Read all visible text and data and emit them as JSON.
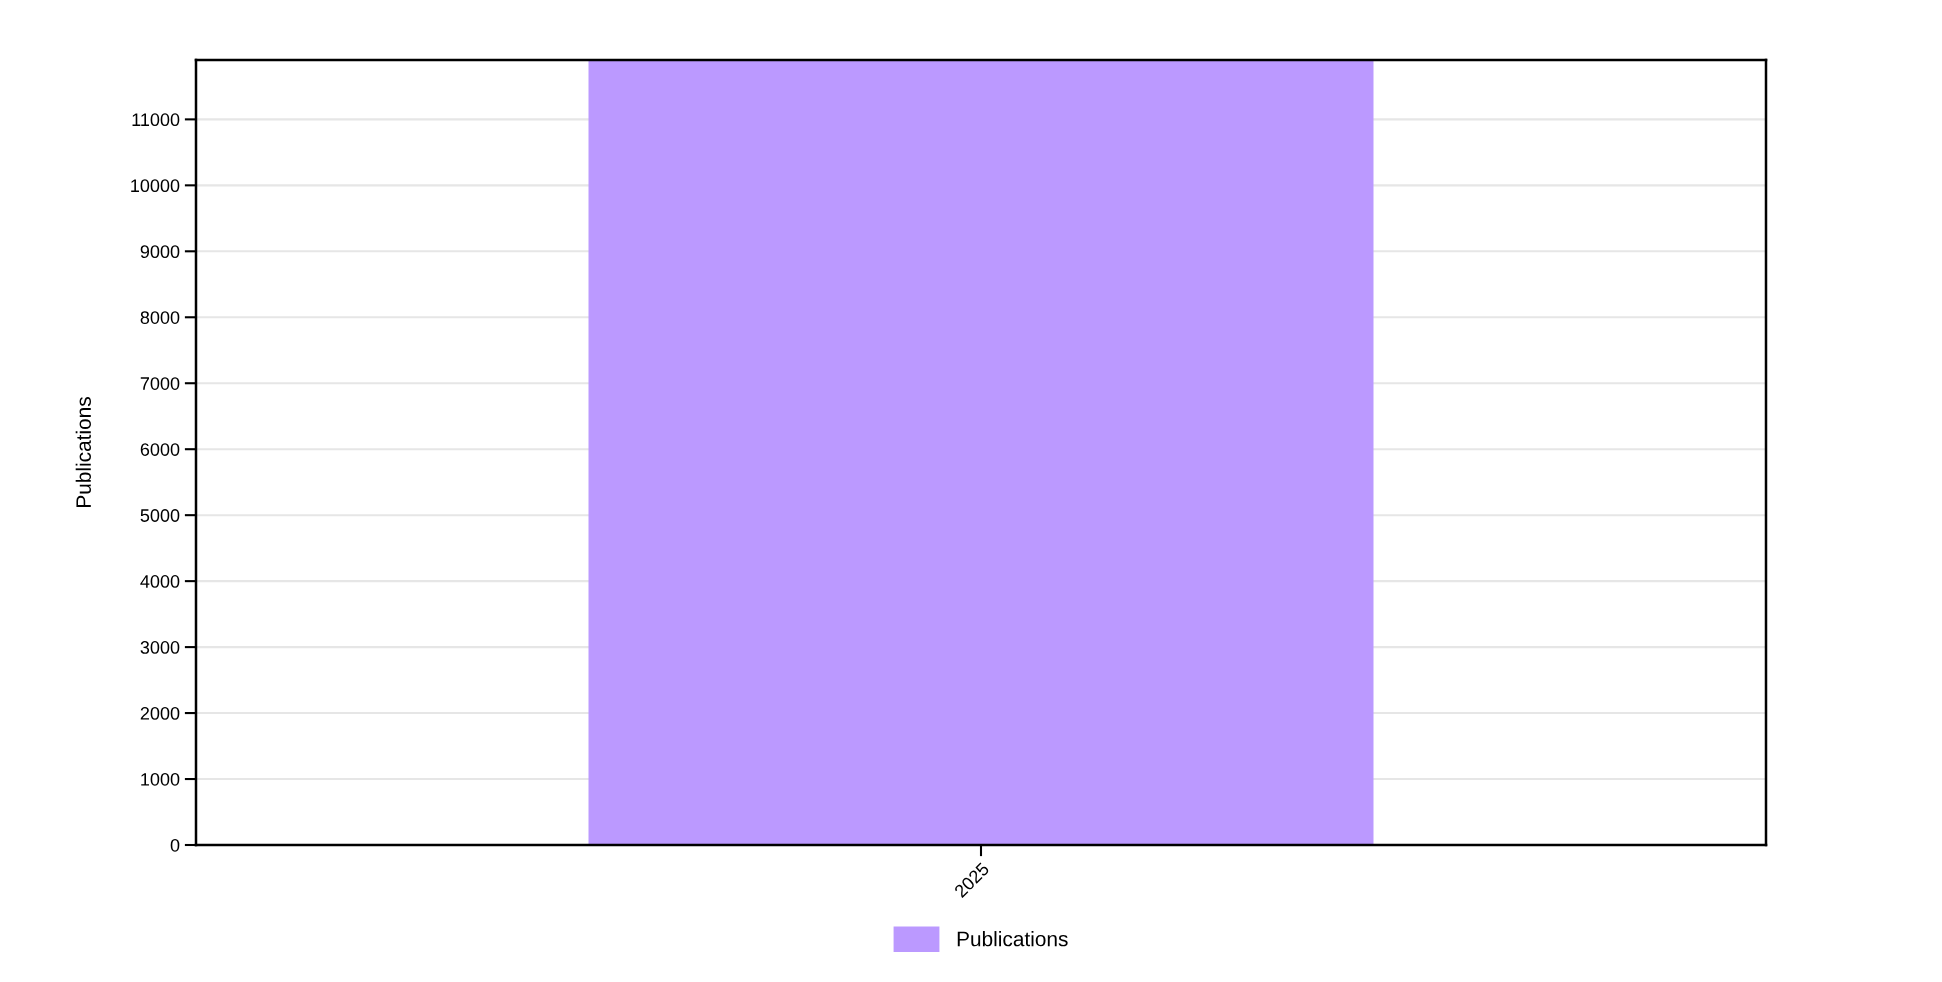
{
  "chart_data": {
    "type": "bar",
    "ylabel": "Publications",
    "categories": [
      "2025"
    ],
    "series": [
      {
        "name": "Publications",
        "color": "#bb99ff",
        "values": [
          11900
        ]
      }
    ],
    "ylim": [
      0,
      11900
    ],
    "yticks": [
      0,
      1000,
      2000,
      3000,
      4000,
      5000,
      6000,
      7000,
      8000,
      9000,
      10000,
      11000
    ],
    "grid": "y",
    "legend": "bottom"
  }
}
